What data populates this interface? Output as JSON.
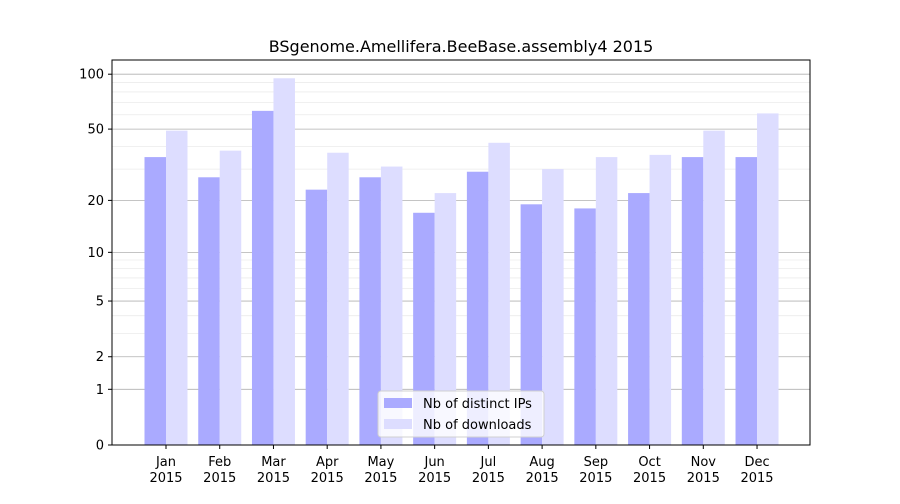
{
  "chart_data": {
    "type": "bar",
    "title": "BSgenome.Amellifera.BeeBase.assembly4 2015",
    "xlabel": "",
    "ylabel": "",
    "yscale": "log(1+x)",
    "ylim": [
      0,
      110
    ],
    "yticks": [
      0,
      1,
      2,
      5,
      10,
      20,
      50,
      100
    ],
    "grid": true,
    "legend_position": "bottom-center",
    "categories": [
      "Jan\n2015",
      "Feb\n2015",
      "Mar\n2015",
      "Apr\n2015",
      "May\n2015",
      "Jun\n2015",
      "Jul\n2015",
      "Aug\n2015",
      "Sep\n2015",
      "Oct\n2015",
      "Nov\n2015",
      "Dec\n2015"
    ],
    "series": [
      {
        "name": "Nb of distinct IPs",
        "color": "#aaaaff",
        "values": [
          35,
          27,
          63,
          23,
          27,
          17,
          29,
          19,
          18,
          22,
          35,
          35
        ]
      },
      {
        "name": "Nb of downloads",
        "color": "#ddddff",
        "values": [
          49,
          38,
          95,
          37,
          31,
          22,
          42,
          30,
          35,
          36,
          49,
          61
        ]
      }
    ]
  }
}
